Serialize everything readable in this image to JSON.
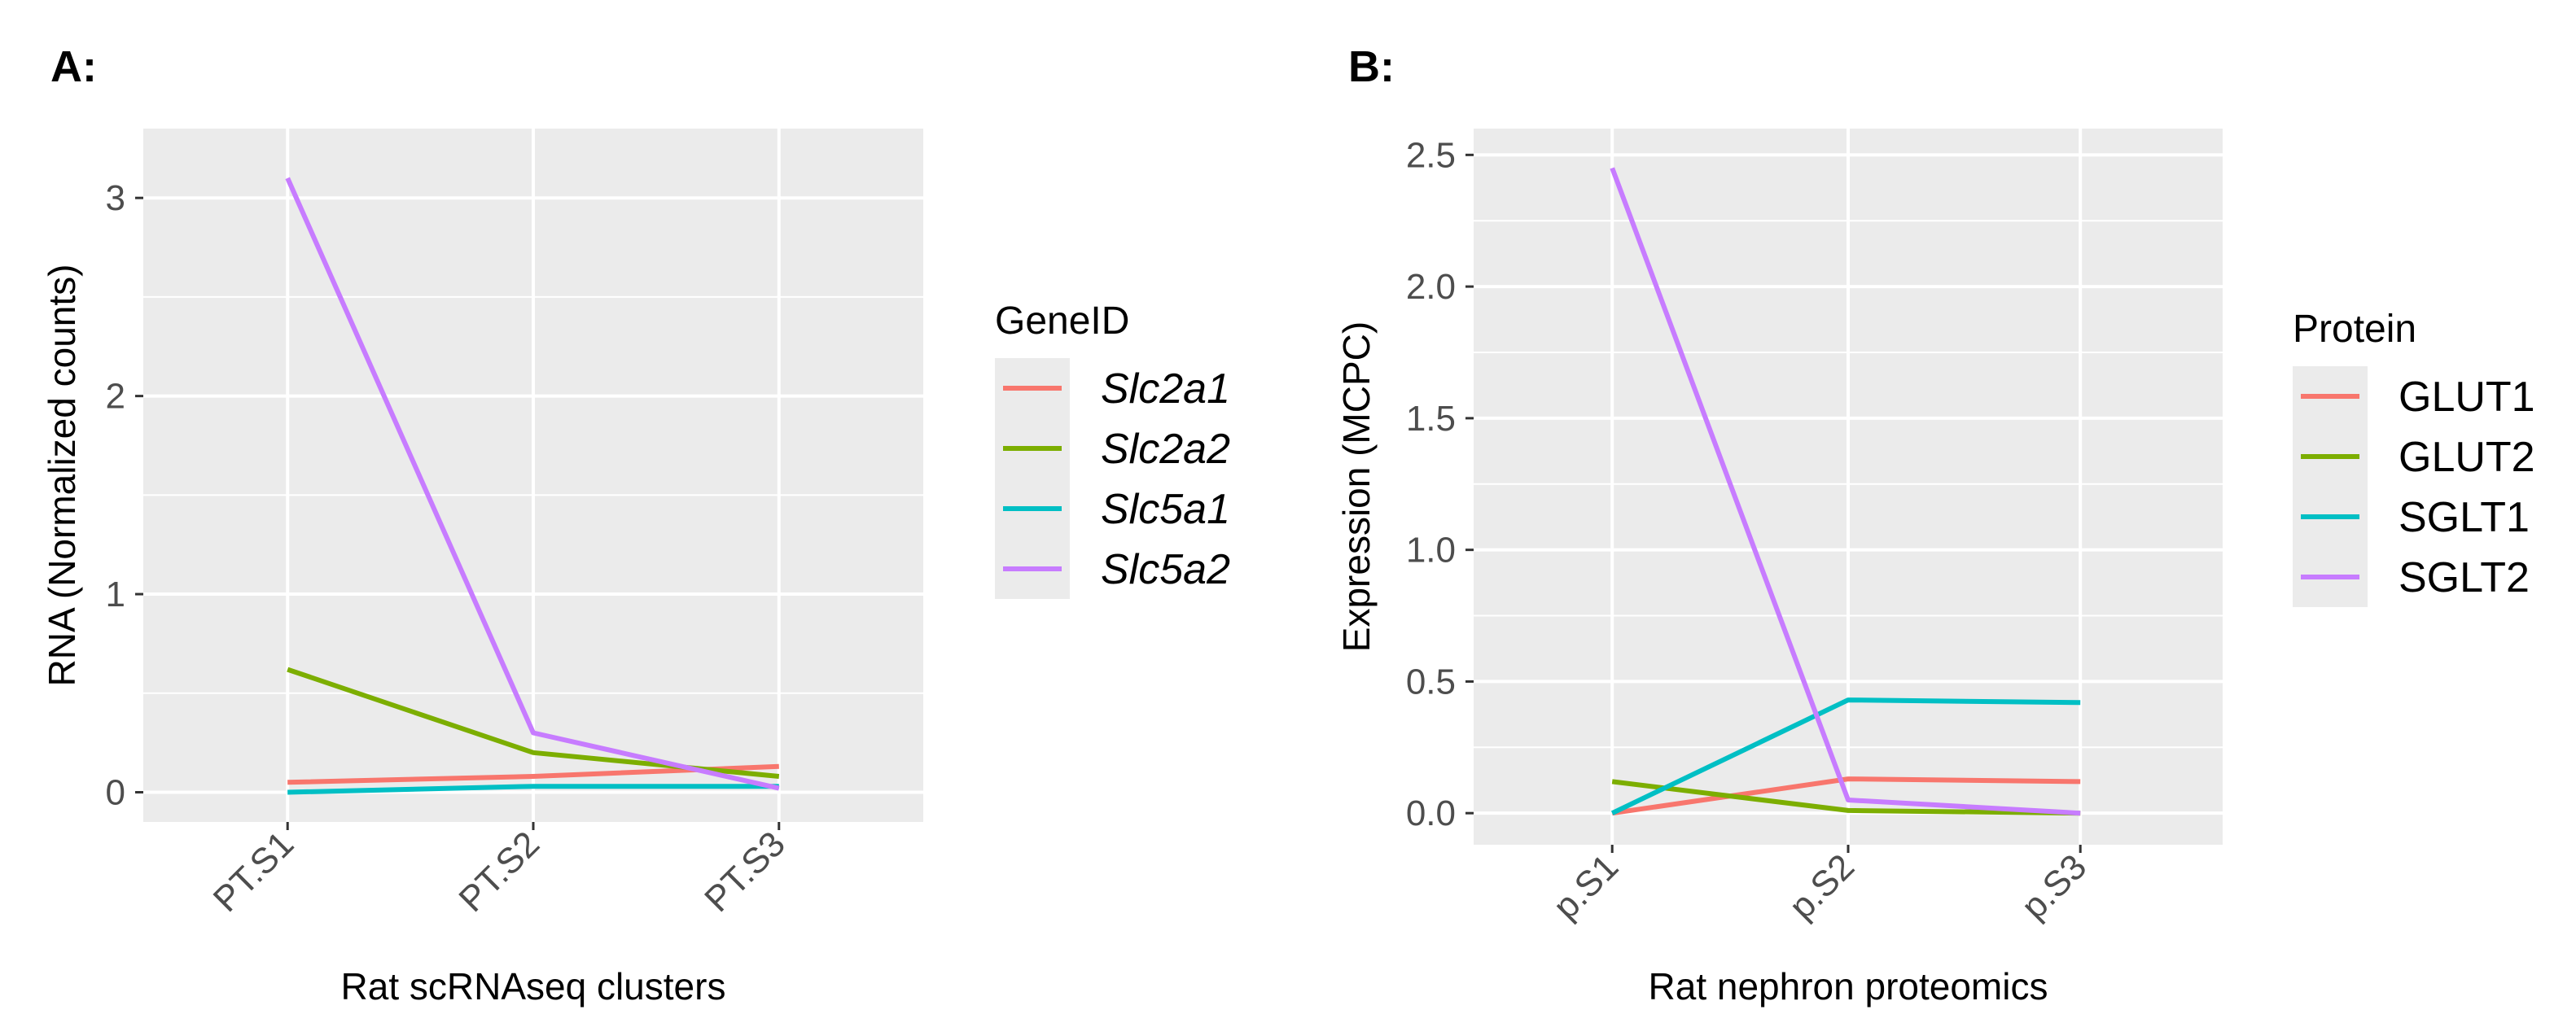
{
  "chart_data": [
    {
      "type": "line",
      "panel_label": "A:",
      "categories": [
        "PT.S1",
        "PT.S2",
        "PT.S3"
      ],
      "xlabel": "Rat scRNAseq clusters",
      "ylabel": "RNA (Normalized counts)",
      "ylim": [
        -0.15,
        3.35
      ],
      "yticks": [
        0,
        1,
        2,
        3
      ],
      "grid": true,
      "legend": {
        "title": "GeneID",
        "placement": "right",
        "italic": true
      },
      "series": [
        {
          "name": "Slc2a1",
          "color": "#F8766D",
          "values": [
            0.05,
            0.08,
            0.13
          ]
        },
        {
          "name": "Slc2a2",
          "color": "#7CAE00",
          "values": [
            0.62,
            0.2,
            0.08
          ]
        },
        {
          "name": "Slc5a1",
          "color": "#00BFC4",
          "values": [
            0.0,
            0.03,
            0.03
          ]
        },
        {
          "name": "Slc5a2",
          "color": "#C77CFF",
          "values": [
            3.1,
            0.3,
            0.02
          ]
        }
      ]
    },
    {
      "type": "line",
      "panel_label": "B:",
      "categories": [
        "p.S1",
        "p.S2",
        "p.S3"
      ],
      "xlabel": "Rat nephron proteomics",
      "ylabel": "Expression (MCPC)",
      "ylim": [
        -0.12,
        2.6
      ],
      "yticks": [
        "0.0",
        "0.5",
        "1.0",
        "1.5",
        "2.0",
        "2.5"
      ],
      "grid": true,
      "legend": {
        "title": "Protein",
        "placement": "right",
        "italic": false
      },
      "series": [
        {
          "name": "GLUT1",
          "color": "#F8766D",
          "values": [
            0.0,
            0.13,
            0.12
          ]
        },
        {
          "name": "GLUT2",
          "color": "#7CAE00",
          "values": [
            0.12,
            0.01,
            0.0
          ]
        },
        {
          "name": "SGLT1",
          "color": "#00BFC4",
          "values": [
            0.0,
            0.43,
            0.42
          ]
        },
        {
          "name": "SGLT2",
          "color": "#C77CFF",
          "values": [
            2.45,
            0.05,
            0.0
          ]
        }
      ]
    }
  ]
}
